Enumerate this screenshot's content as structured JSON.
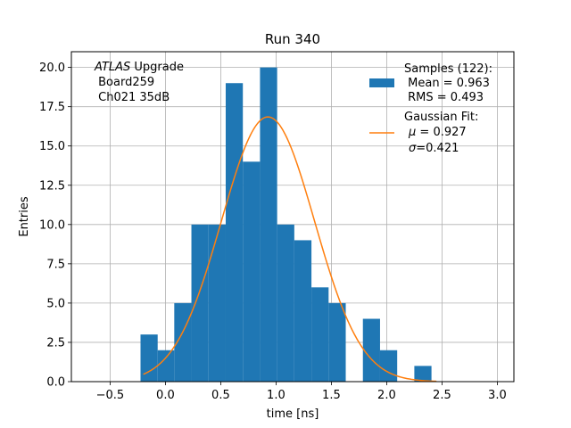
{
  "chart_data": {
    "type": "bar",
    "title": "Run 340",
    "xlabel": "time [ns]",
    "ylabel": "Entries",
    "xlim": [
      -0.85,
      3.15
    ],
    "ylim": [
      0,
      21
    ],
    "grid": true,
    "x_ticks": [
      -0.5,
      0.0,
      0.5,
      1.0,
      1.5,
      2.0,
      2.5,
      3.0
    ],
    "x_tick_labels": [
      "−0.5",
      "0.0",
      "0.5",
      "1.0",
      "1.5",
      "2.0",
      "2.5",
      "3.0"
    ],
    "y_ticks": [
      0.0,
      2.5,
      5.0,
      7.5,
      10.0,
      12.5,
      15.0,
      17.5,
      20.0
    ],
    "y_tick_labels": [
      "0.0",
      "2.5",
      "5.0",
      "7.5",
      "10.0",
      "12.5",
      "15.0",
      "17.5",
      "20.0"
    ],
    "histogram": {
      "name": "Samples",
      "color": "#1f77b4",
      "bin_edges": [
        -0.225,
        -0.07,
        0.08,
        0.235,
        0.39,
        0.545,
        0.7,
        0.855,
        1.01,
        1.165,
        1.32,
        1.475,
        1.63,
        1.785,
        1.94,
        2.095,
        2.25,
        2.405,
        2.56
      ],
      "counts": [
        3,
        2,
        5,
        10,
        10,
        19,
        14,
        20,
        10,
        9,
        6,
        5,
        0,
        4,
        2,
        0,
        1,
        0
      ]
    },
    "fit": {
      "name": "Gaussian Fit",
      "color": "#ff7f0e",
      "mu": 0.927,
      "sigma": 0.421,
      "amplitude": 16.85,
      "x_range": [
        -0.2,
        2.45
      ]
    },
    "legend": {
      "position": "top-right",
      "samples_title": "Samples (122):",
      "samples_mean": " Mean = 0.963",
      "samples_rms": " RMS = 0.493",
      "fit_title": "Gaussian Fit:",
      "fit_mu_symbol": "μ",
      "fit_mu_value": " = 0.927",
      "fit_sigma_symbol": "σ",
      "fit_sigma_value": "=0.421"
    },
    "annotation": {
      "position": "top-left",
      "line1_italic": "ATLAS",
      "line1_rest": " Upgrade",
      "line2": " Board259",
      "line3": " Ch021 35dB"
    }
  }
}
